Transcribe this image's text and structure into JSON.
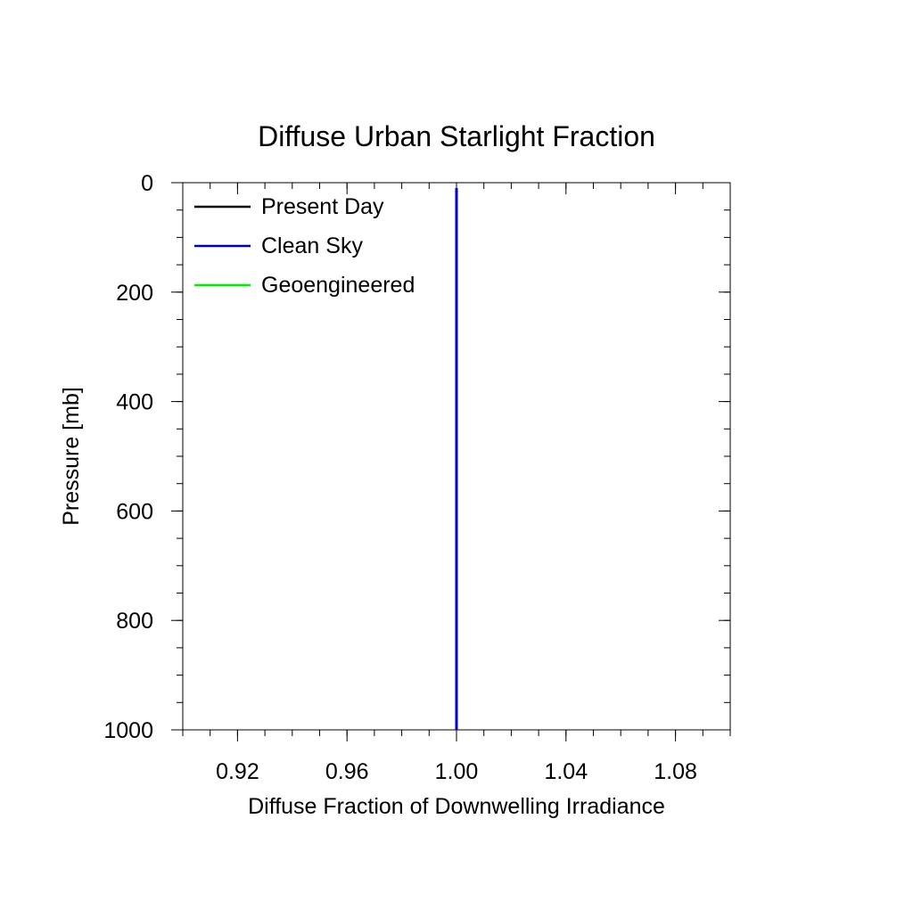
{
  "chart_data": {
    "type": "line",
    "title": "Diffuse Urban Starlight Fraction",
    "xlabel": "Diffuse Fraction of Downwelling Irradiance",
    "ylabel": "Pressure [mb]",
    "xlim": [
      0.9,
      1.1
    ],
    "ylim": [
      0,
      1000
    ],
    "y_inverted": true,
    "x_ticks": [
      0.92,
      0.96,
      1.0,
      1.04,
      1.08
    ],
    "x_tick_labels": [
      "0.92",
      "0.96",
      "1.00",
      "1.04",
      "1.08"
    ],
    "y_ticks": [
      0,
      200,
      400,
      600,
      800,
      1000
    ],
    "y_tick_labels": [
      "0",
      "200",
      "400",
      "600",
      "800",
      "1000"
    ],
    "grid": false,
    "legend_position": "top-left",
    "series": [
      {
        "name": "Present Day",
        "color": "#000000",
        "x": [
          1.0,
          1.0
        ],
        "y": [
          10,
          1000
        ]
      },
      {
        "name": "Clean Sky",
        "color": "#0000cc",
        "x": [
          1.0,
          1.0
        ],
        "y": [
          10,
          1000
        ]
      },
      {
        "name": "Geoengineered",
        "color": "#00ee00",
        "x": [],
        "y": []
      }
    ]
  }
}
